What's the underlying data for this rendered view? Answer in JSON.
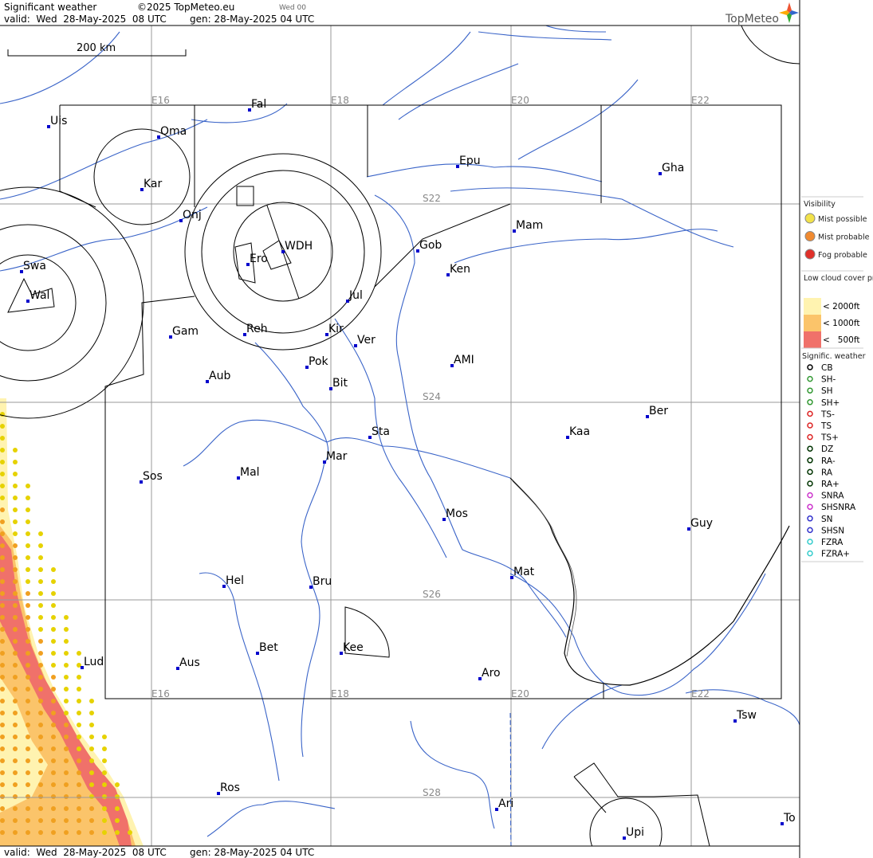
{
  "header": {
    "title": "Significant weather",
    "copyright": "©2025 TopMeteo.eu",
    "run": "Wed 00",
    "valid": "valid:  Wed  28-May-2025  08 UTC",
    "gen": "gen: 28-May-2025 04 UTC",
    "logo": "TopMeteo"
  },
  "footer": {
    "valid": "valid:  Wed  28-May-2025  08 UTC",
    "gen": "gen: 28-May-2025 04 UTC"
  },
  "scale_bar": "200 km",
  "grid_labels": {
    "top": [
      "E16",
      "E18",
      "E20",
      "E22"
    ],
    "bottom": [
      "E16",
      "E18",
      "E20",
      "E22"
    ],
    "lat": [
      "S22",
      "S24",
      "S26",
      "S28"
    ]
  },
  "places": [
    "Uis",
    "Fal",
    "Oma",
    "Kar",
    "Onj",
    "Epu",
    "Gha",
    "Mam",
    "Gob",
    "Ken",
    "WDH",
    "Ero",
    "Swa",
    "Wal",
    "Jul",
    "Gam",
    "Reh",
    "Kir",
    "Ver",
    "AMI",
    "Pok",
    "Bit",
    "Aub",
    "Ber",
    "Kaa",
    "Sta",
    "Mar",
    "Sos",
    "Mal",
    "Mos",
    "Guy",
    "Mat",
    "Hel",
    "Bru",
    "Bet",
    "Kee",
    "Lud",
    "Aus",
    "Aro",
    "Tsw",
    "Ros",
    "Ari",
    "Upi",
    "To"
  ],
  "legend": {
    "visibility": {
      "title": "Visibility",
      "items": [
        "Mist possible",
        "Mist probable",
        "Fog probable"
      ]
    },
    "low_cloud": {
      "title": "Low cloud cover probable",
      "items": [
        "< 2000ft",
        "< 1000ft",
        "<   500ft"
      ]
    },
    "weather": {
      "title": "Signific. weather",
      "items": [
        "CB",
        "SH-",
        "SH",
        "SH+",
        "TS-",
        "TS",
        "TS+",
        "DZ",
        "RA-",
        "RA",
        "RA+",
        "SNRA",
        "SHSNRA",
        "SN",
        "SHSN",
        "FZRA",
        "FZRA+"
      ]
    }
  }
}
